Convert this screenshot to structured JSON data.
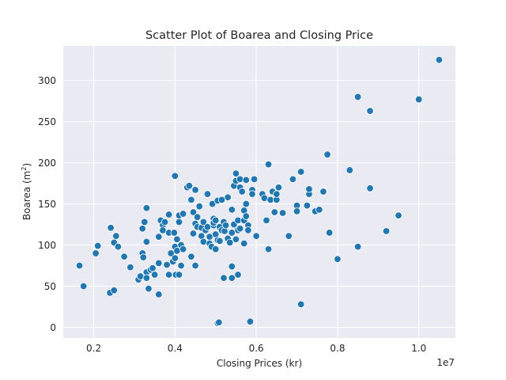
{
  "chart_data": {
    "type": "scatter",
    "title": "Scatter Plot of Boarea and Closing Price",
    "xlabel": "Closing Prices (kr)",
    "ylabel_main": "Boarea (m",
    "ylabel_sup": "2",
    "ylabel_end": ")",
    "x_offset_label": "1e7",
    "x_scale": 10000000,
    "xlim": [
      1250000,
      10900000
    ],
    "ylim": [
      -13,
      342
    ],
    "x_ticks": [
      2000000,
      4000000,
      6000000,
      8000000,
      10000000
    ],
    "x_tick_labels": [
      "0.2",
      "0.4",
      "0.6",
      "0.8",
      "1.0"
    ],
    "y_ticks": [
      0,
      50,
      100,
      150,
      200,
      250,
      300
    ],
    "y_tick_labels": [
      "0",
      "50",
      "100",
      "150",
      "200",
      "250",
      "300"
    ],
    "grid": true,
    "point_color": "#1f77b4",
    "points": [
      [
        1650000,
        75
      ],
      [
        1750000,
        50
      ],
      [
        2050000,
        90
      ],
      [
        2100000,
        99
      ],
      [
        2400000,
        42
      ],
      [
        2420000,
        121
      ],
      [
        2500000,
        45
      ],
      [
        2500000,
        103
      ],
      [
        2550000,
        111
      ],
      [
        2600000,
        98
      ],
      [
        2750000,
        86
      ],
      [
        2900000,
        73
      ],
      [
        3100000,
        58
      ],
      [
        3150000,
        62
      ],
      [
        3200000,
        120
      ],
      [
        3200000,
        90
      ],
      [
        3220000,
        85
      ],
      [
        3250000,
        128
      ],
      [
        3300000,
        145
      ],
      [
        3300000,
        104
      ],
      [
        3300000,
        67
      ],
      [
        3300000,
        60
      ],
      [
        3350000,
        47
      ],
      [
        3400000,
        70
      ],
      [
        3450000,
        72
      ],
      [
        3500000,
        64
      ],
      [
        3600000,
        40
      ],
      [
        3600000,
        110
      ],
      [
        3600000,
        78
      ],
      [
        3650000,
        130
      ],
      [
        3700000,
        124
      ],
      [
        3700000,
        118
      ],
      [
        3750000,
        128
      ],
      [
        3800000,
        76
      ],
      [
        3850000,
        64
      ],
      [
        3850000,
        115
      ],
      [
        3850000,
        137
      ],
      [
        3900000,
        90
      ],
      [
        3950000,
        80
      ],
      [
        3980000,
        115
      ],
      [
        4000000,
        184
      ],
      [
        4000000,
        98
      ],
      [
        4000000,
        84
      ],
      [
        4020000,
        64
      ],
      [
        4050000,
        93
      ],
      [
        4050000,
        107
      ],
      [
        4100000,
        64
      ],
      [
        4100000,
        128
      ],
      [
        4100000,
        136
      ],
      [
        4150000,
        75
      ],
      [
        4150000,
        100
      ],
      [
        4200000,
        95
      ],
      [
        4200000,
        138
      ],
      [
        4300000,
        170
      ],
      [
        4350000,
        172
      ],
      [
        4400000,
        86
      ],
      [
        4400000,
        155
      ],
      [
        4450000,
        140
      ],
      [
        4450000,
        114
      ],
      [
        4500000,
        167
      ],
      [
        4500000,
        126
      ],
      [
        4500000,
        75
      ],
      [
        4550000,
        122
      ],
      [
        4550000,
        134
      ],
      [
        4600000,
        147
      ],
      [
        4650000,
        121
      ],
      [
        4650000,
        111
      ],
      [
        4700000,
        128
      ],
      [
        4700000,
        104
      ],
      [
        4750000,
        118
      ],
      [
        4800000,
        162
      ],
      [
        4800000,
        122
      ],
      [
        4850000,
        110
      ],
      [
        4850000,
        102
      ],
      [
        4900000,
        98
      ],
      [
        4920000,
        150
      ],
      [
        4950000,
        124
      ],
      [
        4950000,
        132
      ],
      [
        4950000,
        127
      ],
      [
        5000000,
        95
      ],
      [
        5000000,
        130
      ],
      [
        5000000,
        113
      ],
      [
        5050000,
        106
      ],
      [
        5050000,
        154
      ],
      [
        5050000,
        5
      ],
      [
        5080000,
        6
      ],
      [
        5100000,
        122
      ],
      [
        5100000,
        105
      ],
      [
        5150000,
        118
      ],
      [
        5150000,
        155
      ],
      [
        5200000,
        60
      ],
      [
        5200000,
        128
      ],
      [
        5220000,
        117
      ],
      [
        5250000,
        124
      ],
      [
        5300000,
        108
      ],
      [
        5300000,
        158
      ],
      [
        5350000,
        103
      ],
      [
        5400000,
        115
      ],
      [
        5400000,
        60
      ],
      [
        5400000,
        74
      ],
      [
        5400000,
        143
      ],
      [
        5450000,
        172
      ],
      [
        5450000,
        125
      ],
      [
        5500000,
        107
      ],
      [
        5500000,
        187
      ],
      [
        5500000,
        178
      ],
      [
        5550000,
        118
      ],
      [
        5550000,
        130
      ],
      [
        5550000,
        64
      ],
      [
        5600000,
        120
      ],
      [
        5600000,
        170
      ],
      [
        5600000,
        180
      ],
      [
        5650000,
        165
      ],
      [
        5700000,
        130
      ],
      [
        5700000,
        142
      ],
      [
        5700000,
        102
      ],
      [
        5750000,
        135
      ],
      [
        5750000,
        179
      ],
      [
        5750000,
        150
      ],
      [
        5800000,
        124
      ],
      [
        5800000,
        118
      ],
      [
        5850000,
        7
      ],
      [
        5900000,
        167
      ],
      [
        5900000,
        162
      ],
      [
        5950000,
        180
      ],
      [
        6000000,
        111
      ],
      [
        6150000,
        162
      ],
      [
        6200000,
        157
      ],
      [
        6250000,
        130
      ],
      [
        6300000,
        198
      ],
      [
        6300000,
        95
      ],
      [
        6350000,
        155
      ],
      [
        6400000,
        165
      ],
      [
        6450000,
        140
      ],
      [
        6500000,
        155
      ],
      [
        6500000,
        162
      ],
      [
        6550000,
        170
      ],
      [
        6650000,
        139
      ],
      [
        6800000,
        111
      ],
      [
        6900000,
        180
      ],
      [
        7000000,
        148
      ],
      [
        7000000,
        141
      ],
      [
        7100000,
        189
      ],
      [
        7100000,
        28
      ],
      [
        7250000,
        148
      ],
      [
        7300000,
        162
      ],
      [
        7300000,
        168
      ],
      [
        7450000,
        141
      ],
      [
        7550000,
        143
      ],
      [
        7650000,
        165
      ],
      [
        7750000,
        210
      ],
      [
        7800000,
        115
      ],
      [
        8000000,
        83
      ],
      [
        8300000,
        191
      ],
      [
        8500000,
        280
      ],
      [
        8500000,
        98
      ],
      [
        8800000,
        263
      ],
      [
        8800000,
        169
      ],
      [
        9200000,
        117
      ],
      [
        9500000,
        136
      ],
      [
        10000000,
        277
      ],
      [
        10500000,
        325
      ]
    ]
  }
}
